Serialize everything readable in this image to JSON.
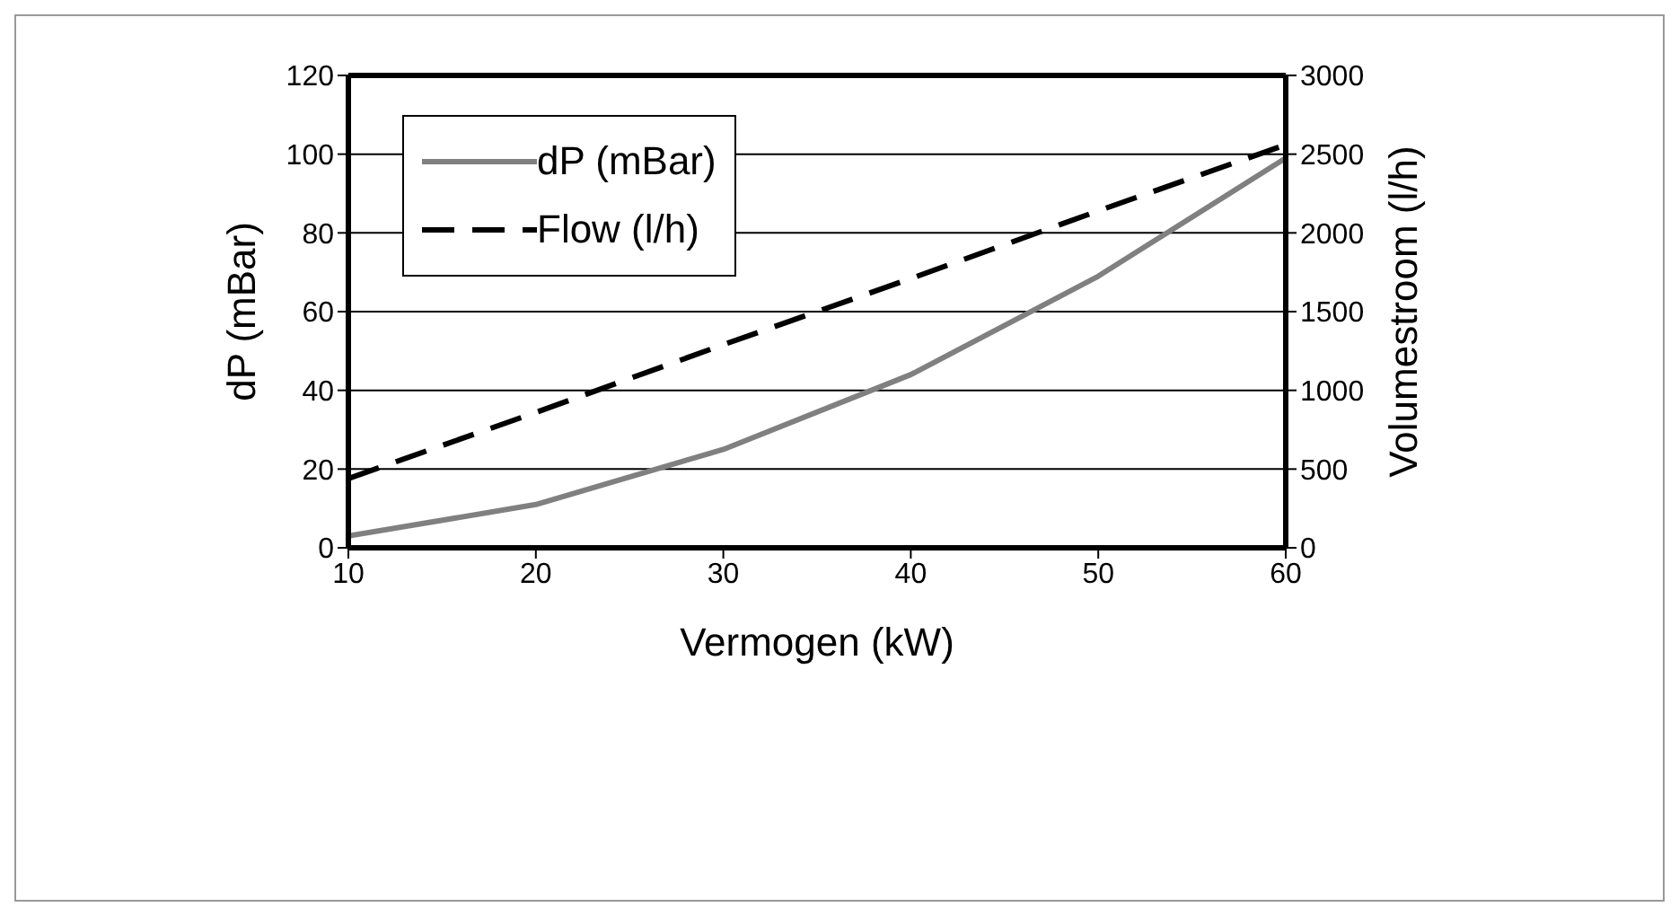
{
  "chart_data": {
    "type": "line",
    "xlabel": "Vermogen (kW)",
    "ylabel": "dP (mBar)",
    "y2label": "Volumestroom (l/h)",
    "x": [
      10,
      20,
      30,
      40,
      50,
      60
    ],
    "series": [
      {
        "name": "dP (mBar)",
        "color": "#808080",
        "values": [
          3,
          11,
          25,
          44,
          69,
          99
        ],
        "line_style": "solid"
      },
      {
        "name": "Flow (l/h)",
        "color": "#000000",
        "values": [
          440,
          860,
          1290,
          1710,
          2140,
          2560
        ],
        "axis": "y2",
        "line_style": "dashed"
      }
    ],
    "xlim": [
      10,
      60
    ],
    "xticks": [
      10,
      20,
      30,
      40,
      50,
      60
    ],
    "ylim": [
      0,
      120
    ],
    "yticks": [
      0,
      20,
      40,
      60,
      80,
      100,
      120
    ],
    "y2lim": [
      0,
      3000
    ],
    "y2ticks": [
      0,
      500,
      1000,
      1500,
      2000,
      2500,
      3000
    ],
    "grid": "y",
    "legend": "top left",
    "marker": "none"
  }
}
